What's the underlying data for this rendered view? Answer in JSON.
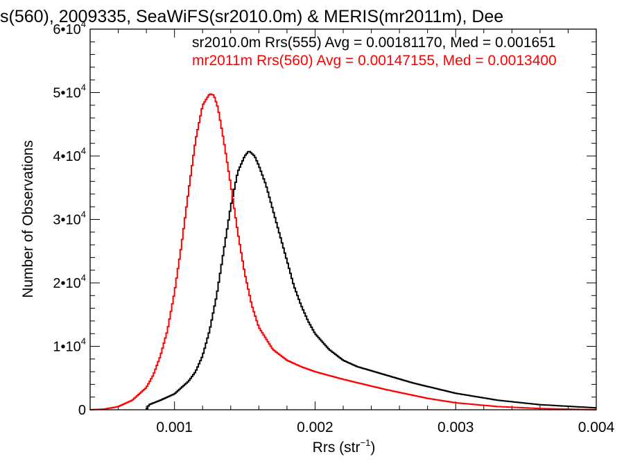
{
  "chart_data": {
    "type": "line",
    "title": "s(560), 2009335, SeaWiFS(sr2010.0m) & MERIS(mr2011m), Dee",
    "xlabel_main": "Rrs (str",
    "xlabel_sup": "−1",
    "xlabel_close": ")",
    "ylabel": "Number of Observations",
    "xlim": [
      0.0004,
      0.004
    ],
    "ylim": [
      0,
      60000
    ],
    "x_ticks": [
      {
        "value": 0.001,
        "label": "0.001"
      },
      {
        "value": 0.002,
        "label": "0.002"
      },
      {
        "value": 0.003,
        "label": "0.003"
      },
      {
        "value": 0.004,
        "label": "0.004"
      }
    ],
    "y_ticks": [
      {
        "value": 0,
        "mant": "0",
        "exp": ""
      },
      {
        "value": 10000,
        "mant": "1•10",
        "exp": "4"
      },
      {
        "value": 20000,
        "mant": "2•10",
        "exp": "4"
      },
      {
        "value": 30000,
        "mant": "3•10",
        "exp": "4"
      },
      {
        "value": 40000,
        "mant": "4•10",
        "exp": "4"
      },
      {
        "value": 50000,
        "mant": "5•10",
        "exp": "4"
      },
      {
        "value": 60000,
        "mant": "6•10",
        "exp": "4"
      }
    ],
    "legend_placement": "top-right",
    "series": [
      {
        "name": "sr2010.0m Rrs(555) Avg = 0.00181170, Med = 0.001651",
        "color": "#000000",
        "points": [
          [
            0.0008,
            0
          ],
          [
            0.00082,
            800
          ],
          [
            0.0009,
            1500
          ],
          [
            0.001,
            2500
          ],
          [
            0.0011,
            4500
          ],
          [
            0.00115,
            6000
          ],
          [
            0.0012,
            8500
          ],
          [
            0.00125,
            12500
          ],
          [
            0.0013,
            18000
          ],
          [
            0.00135,
            25000
          ],
          [
            0.0014,
            32000
          ],
          [
            0.00145,
            37500
          ],
          [
            0.0015,
            40000
          ],
          [
            0.00153,
            40800
          ],
          [
            0.00157,
            40000
          ],
          [
            0.0016,
            38500
          ],
          [
            0.00165,
            35500
          ],
          [
            0.0017,
            31500
          ],
          [
            0.00175,
            27500
          ],
          [
            0.0018,
            23500
          ],
          [
            0.00185,
            19500
          ],
          [
            0.0019,
            16500
          ],
          [
            0.00195,
            14000
          ],
          [
            0.002,
            12000
          ],
          [
            0.0021,
            9500
          ],
          [
            0.0022,
            7800
          ],
          [
            0.0023,
            6800
          ],
          [
            0.0025,
            5500
          ],
          [
            0.0027,
            4200
          ],
          [
            0.003,
            2600
          ],
          [
            0.0033,
            1500
          ],
          [
            0.0036,
            800
          ],
          [
            0.004,
            300
          ]
        ]
      },
      {
        "name": "mr2011m Rrs(560) Avg = 0.00147155, Med = 0.0013400",
        "color": "#ff0000",
        "points": [
          [
            0.0004,
            0
          ],
          [
            0.0005,
            100
          ],
          [
            0.0006,
            500
          ],
          [
            0.0007,
            1500
          ],
          [
            0.0008,
            3500
          ],
          [
            0.00085,
            5500
          ],
          [
            0.0009,
            8500
          ],
          [
            0.00095,
            12500
          ],
          [
            0.001,
            18500
          ],
          [
            0.00105,
            26000
          ],
          [
            0.0011,
            34500
          ],
          [
            0.00115,
            42500
          ],
          [
            0.0012,
            48000
          ],
          [
            0.00125,
            49800
          ],
          [
            0.00128,
            49600
          ],
          [
            0.00131,
            47500
          ],
          [
            0.00135,
            42500
          ],
          [
            0.0014,
            35500
          ],
          [
            0.00145,
            28000
          ],
          [
            0.0015,
            21500
          ],
          [
            0.00155,
            16500
          ],
          [
            0.0016,
            13000
          ],
          [
            0.0017,
            9500
          ],
          [
            0.0018,
            7800
          ],
          [
            0.0019,
            6800
          ],
          [
            0.002,
            6000
          ],
          [
            0.0022,
            4800
          ],
          [
            0.0025,
            3200
          ],
          [
            0.0028,
            1800
          ],
          [
            0.003,
            1100
          ],
          [
            0.0033,
            500
          ],
          [
            0.0036,
            200
          ],
          [
            0.004,
            0
          ]
        ]
      }
    ]
  }
}
